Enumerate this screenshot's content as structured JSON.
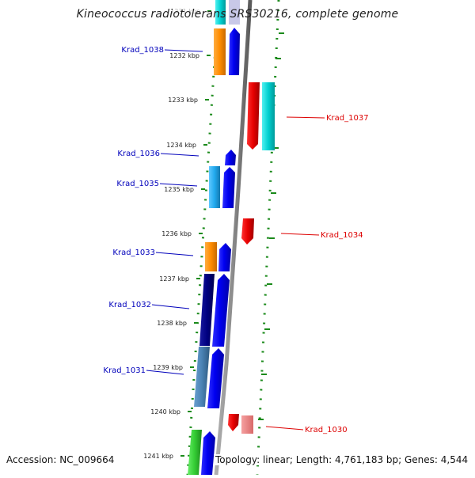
{
  "title": "Kineococcus radiotolerans SRS30216, complete genome",
  "footer": {
    "accession": "Accession: NC_009664",
    "summary": "Topology: linear; Length: 4,761,183 bp; Genes: 4,544"
  },
  "ticks": [
    {
      "label": "1231 kbp",
      "faded": true
    },
    {
      "label": "1232 kbp"
    },
    {
      "label": "1233 kbp"
    },
    {
      "label": "1234 kbp"
    },
    {
      "label": "1235 kbp"
    },
    {
      "label": "1236 kbp"
    },
    {
      "label": "1237 kbp"
    },
    {
      "label": "1238 kbp"
    },
    {
      "label": "1239 kbp"
    },
    {
      "label": "1240 kbp"
    },
    {
      "label": "1241 kbp"
    }
  ],
  "genes": [
    {
      "label": "Krad_1038",
      "side": "left",
      "color": "#0000bb"
    },
    {
      "label": "Krad_1037",
      "side": "right",
      "color": "#dd0000"
    },
    {
      "label": "Krad_1036",
      "side": "left",
      "color": "#0000bb"
    },
    {
      "label": "Krad_1035",
      "side": "left",
      "color": "#0000bb"
    },
    {
      "label": "Krad_1034",
      "side": "right",
      "color": "#dd0000"
    },
    {
      "label": "Krad_1033",
      "side": "left",
      "color": "#0000bb"
    },
    {
      "label": "Krad_1032",
      "side": "left",
      "color": "#0000bb"
    },
    {
      "label": "Krad_1031",
      "side": "left",
      "color": "#0000bb"
    },
    {
      "label": "Krad_1030",
      "side": "right",
      "color": "#dd0000"
    }
  ],
  "colors": {
    "backbone": "#8a8a8a",
    "dotted_guides": "#1a8a1a",
    "forward_arrow": "#0000ff",
    "reverse_arrow": "#ee0000",
    "cds_orange": "#ff8c00",
    "cds_cyan": "#00d0d0",
    "cds_sky": "#22aaee",
    "cds_navy": "#000080",
    "cds_steel": "#4a82b4",
    "cds_green": "#33cc33",
    "cds_pink": "#f08080"
  }
}
